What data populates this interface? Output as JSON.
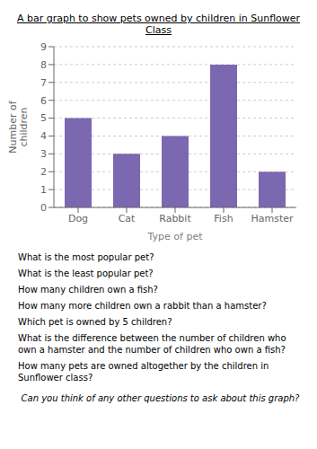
{
  "chart_data": {
    "type": "bar",
    "title": "A bar graph to show pets owned by children in Sunflower Class",
    "categories": [
      "Dog",
      "Cat",
      "Rabbit",
      "Fish",
      "Hamster"
    ],
    "values": [
      5,
      3,
      4,
      8,
      2
    ],
    "color": "#7b68b0",
    "xlabel": "Type of pet",
    "ylabel": "Number of\nchildren",
    "ylim": [
      0,
      9
    ],
    "yticks": [
      0,
      1,
      2,
      3,
      4,
      5,
      6,
      7,
      8,
      9
    ],
    "grid": true,
    "annotations": [
      "What is the most popular pet?",
      "What is the least popular pet?",
      "How many children own a fish?",
      "How many more children own a rabbit than a hamster?",
      "Which pet is owned by 5 children?",
      "What is the difference between the number of children who own a hamster and the number of children who own a fish?",
      "How many pets are owned altogether by the children in Sunflower class?",
      "Can you think of any other questions to ask about this graph?"
    ]
  }
}
